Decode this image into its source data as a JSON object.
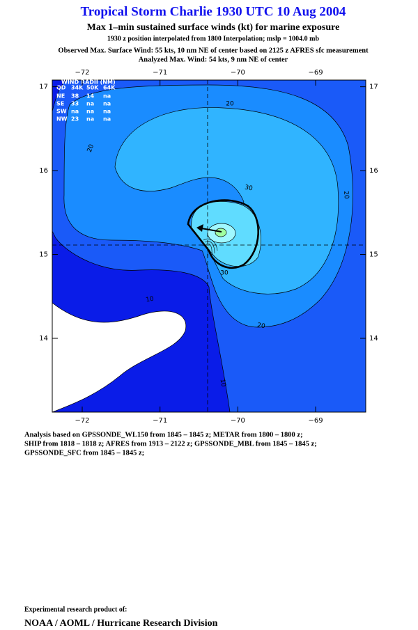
{
  "header": {
    "title": "Tropical Storm Charlie 1930 UTC 10 Aug 2004",
    "subtitle": "Max 1–min sustained surface winds (kt) for marine exposure",
    "note": "1930 z position interpolated from 1800 Interpolation; mslp = 1004.0 mb",
    "observed": "Observed Max. Surface Wind: 55 kts, 10 nm NE of center based on 2125 z AFRES sfc measurement",
    "analyzed": "Analyzed Max. Wind: 54 kts, 9 nm NE of center"
  },
  "map": {
    "xlim": [
      -72.385,
      -68.356
    ],
    "ylim": [
      13.12,
      17.08
    ],
    "xticks": [
      {
        "value": -72,
        "label": "−72"
      },
      {
        "value": -71,
        "label": "−71"
      },
      {
        "value": -70,
        "label": "−70"
      },
      {
        "value": -69,
        "label": "−69"
      }
    ],
    "yticks": [
      14,
      15,
      16,
      17
    ]
  },
  "wind_radii": {
    "title": "WIND RADII (NM)",
    "columns": [
      "QD",
      "34K",
      "50K",
      "64K"
    ],
    "rows": [
      [
        "NE",
        "38",
        "14",
        "na"
      ],
      [
        "SE",
        "33",
        "na",
        "na"
      ],
      [
        "SW",
        "na",
        "na",
        "na"
      ],
      [
        "NW",
        "23",
        "na",
        "na"
      ]
    ]
  },
  "contour_labels": [
    "20",
    "20",
    "30",
    "20",
    "10",
    "30",
    "20",
    "10"
  ],
  "analysis": [
    "Analysis based on  GPSSONDE_WL150 from 1845 – 1845 z;  METAR from 1800 – 1800 z;",
    "SHIP from 1818 – 1818 z;  AFRES from 1913 – 2122 z;  GPSSONDE_MBL from 1845 – 1845 z;",
    "GPSSONDE_SFC from 1845 – 1845 z;"
  ],
  "footer": {
    "note": "Experimental research product of:",
    "org": "NOAA / AOML / Hurricane Research Division"
  }
}
